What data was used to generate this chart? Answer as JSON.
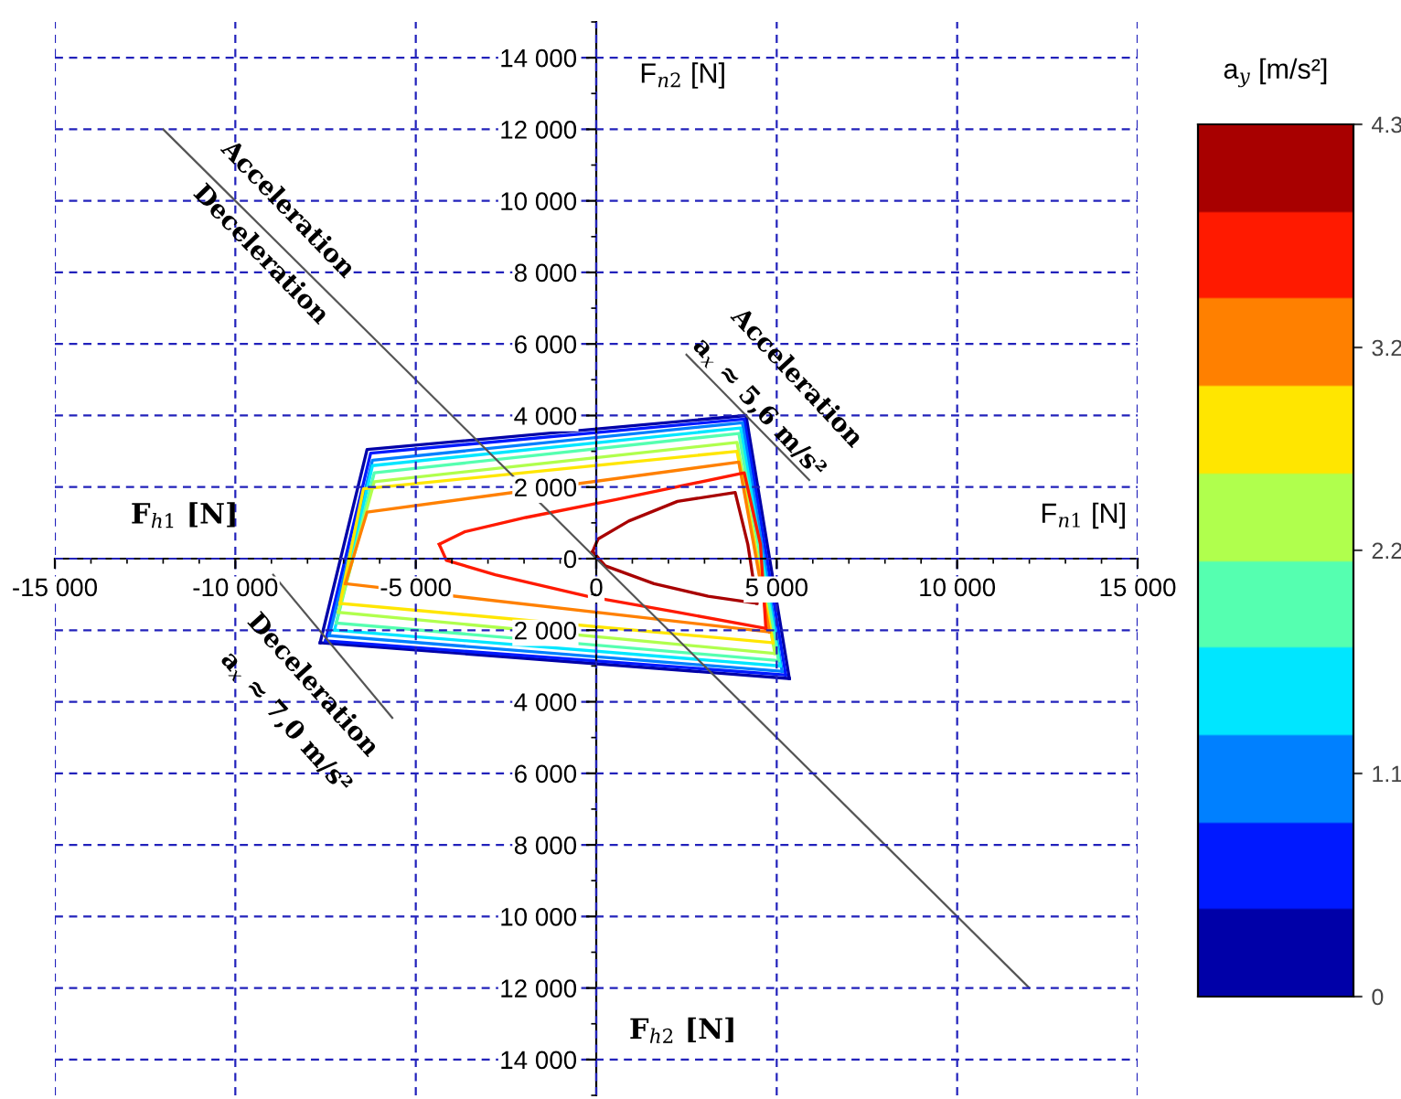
{
  "chart_data": {
    "type": "line",
    "xlabel": "F$_{n1}$ [N]",
    "ylabel": "F$_{n2}$ [N]",
    "clabel": "a$_{y}$ [m/s²]",
    "annotations": [
      "F$_{h1}$ [N]",
      "F$_{h2}$ [N]",
      "Acceleration",
      "Deceleration",
      "Acceleration",
      "a$_{x}$ ≈ 5,6 m/s²",
      "Deceleration",
      "a$_{x}$ ≈ 7,0 m/s²"
    ],
    "xlim": [
      -15000,
      15000
    ],
    "ylim": [
      -15000,
      15000
    ],
    "xticks": [
      {
        "value": -15000,
        "label": "-15 000"
      },
      {
        "value": -10000,
        "label": "-10 000"
      },
      {
        "value": -5000,
        "label": "-5 000"
      },
      0,
      {
        "value": 5000,
        "label": "5 000"
      },
      {
        "value": 10000,
        "label": "10 000"
      },
      {
        "value": 15000,
        "label": "15 000"
      }
    ],
    "yticks": [
      {
        "value": -14000,
        "label": "14 000"
      },
      {
        "value": -12000,
        "label": "12 000"
      },
      {
        "value": -10000,
        "label": "10 000"
      },
      {
        "value": -8000,
        "label": "8 000"
      },
      {
        "value": -6000,
        "label": "6 000"
      },
      {
        "value": -4000,
        "label": "4 000"
      },
      {
        "value": -2000,
        "label": "2 000"
      },
      0,
      {
        "value": 2000,
        "label": "2 000"
      },
      {
        "value": 4000,
        "label": "4 000"
      },
      {
        "value": 6000,
        "label": "6 000"
      },
      {
        "value": 8000,
        "label": "8 000"
      },
      {
        "value": 10000,
        "label": "10 000"
      },
      {
        "value": 12000,
        "label": "12 000"
      },
      {
        "value": 14000,
        "label": "14 000"
      }
    ],
    "grid": true,
    "clim": [
      0,
      4.3
    ],
    "cticks": [
      0,
      1.1,
      2.2,
      3.2,
      4.3
    ],
    "colors": [
      "#0000a8",
      "#0019ff",
      "#0080ff",
      "#00e6ff",
      "#55ffb0",
      "#b0ff4d",
      "#ffe600",
      "#ff8000",
      "#ff1a00",
      "#a80000"
    ],
    "series": [
      {
        "color": "#0000a8",
        "x": [
          -7650,
          -6350,
          4150,
          5350
        ],
        "values": [
          -2350,
          3050,
          4000,
          -3350
        ]
      },
      {
        "color": "#0000a8",
        "x": [
          -7650,
          5350
        ],
        "values": [
          -2350,
          -3350
        ]
      },
      {
        "color": "#0019ff",
        "x": [
          -7500,
          -6250,
          4100,
          5250
        ],
        "values": [
          -2300,
          2950,
          3900,
          -3250
        ]
      },
      {
        "color": "#0019ff",
        "x": [
          -7500,
          5250
        ],
        "values": [
          -2300,
          -3250
        ]
      },
      {
        "color": "#0080ff",
        "x": [
          -7400,
          -6200,
          4050,
          5150
        ],
        "values": [
          -2150,
          2750,
          3800,
          -3150
        ]
      },
      {
        "color": "#0080ff",
        "x": [
          -7400,
          5150
        ],
        "values": [
          -2150,
          -3150
        ]
      },
      {
        "color": "#00e6ff",
        "x": [
          -7250,
          -6200,
          4000,
          5100
        ],
        "values": [
          -2000,
          2600,
          3650,
          -3000
        ]
      },
      {
        "color": "#00e6ff",
        "x": [
          -7250,
          5100
        ],
        "values": [
          -2000,
          -3000
        ]
      },
      {
        "color": "#55ffb0",
        "x": [
          -7200,
          -6150,
          3950,
          5050
        ],
        "values": [
          -1800,
          2400,
          3500,
          -2850
        ]
      },
      {
        "color": "#55ffb0",
        "x": [
          -7200,
          5050
        ],
        "values": [
          -1800,
          -2850
        ]
      },
      {
        "color": "#b0ff4d",
        "x": [
          -7150,
          -6150,
          3900,
          4950
        ],
        "values": [
          -1500,
          2150,
          3250,
          -2650
        ]
      },
      {
        "color": "#b0ff4d",
        "x": [
          -7150,
          4950
        ],
        "values": [
          -1500,
          -2650
        ]
      },
      {
        "color": "#ffe600",
        "x": [
          -7100,
          -6450,
          3900,
          4900
        ],
        "values": [
          -1250,
          1950,
          3000,
          -2350
        ]
      },
      {
        "color": "#ffe600",
        "x": [
          -7100,
          4900
        ],
        "values": [
          -1250,
          -2350
        ]
      },
      {
        "color": "#ff8000",
        "x": [
          -6950,
          -6350,
          3950,
          4800
        ],
        "values": [
          -700,
          1300,
          2700,
          -2050
        ]
      },
      {
        "color": "#ff8000",
        "x": [
          -6950,
          4800
        ],
        "values": [
          -700,
          -2050
        ]
      },
      {
        "color": "#ff1a00",
        "x": [
          -4350,
          -3650,
          -1950,
          550,
          4100,
          4550,
          4700
        ],
        "values": [
          400,
          750,
          1150,
          1650,
          2400,
          400,
          -1950
        ]
      },
      {
        "color": "#ff1a00",
        "x": [
          -4350,
          -4150,
          -2800,
          -250,
          2250,
          4700
        ],
        "values": [
          400,
          -50,
          -450,
          -1050,
          -1500,
          -1950
        ]
      },
      {
        "color": "#a80000",
        "x": [
          -100,
          50,
          900,
          2250,
          3850,
          4200,
          4450
        ],
        "values": [
          200,
          550,
          1050,
          1600,
          1850,
          400,
          -1250
        ]
      },
      {
        "color": "#a80000",
        "x": [
          -100,
          250,
          1600,
          3100,
          4450
        ],
        "values": [
          200,
          -200,
          -700,
          -1050,
          -1250
        ]
      },
      {
        "color": "#555555",
        "x": [
          -12000,
          12000
        ],
        "values": [
          12000,
          -12000
        ]
      },
      {
        "color": "#555555",
        "x": [
          2500,
          5900
        ],
        "values": [
          5700,
          2200
        ]
      },
      {
        "color": "#555555",
        "x": [
          -8950,
          -5650
        ],
        "values": [
          -450,
          -4450
        ]
      }
    ]
  }
}
